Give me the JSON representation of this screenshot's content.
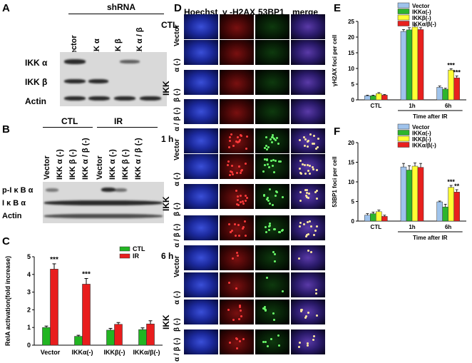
{
  "panels": {
    "A": {
      "label": "A",
      "header": "shRNA",
      "lanes": [
        "Vector",
        "IKK α",
        "IKK β",
        "IKK α / β"
      ],
      "rows": [
        "IKK α",
        "IKK β",
        "Actin"
      ]
    },
    "B": {
      "label": "B",
      "groups": [
        "CTL",
        "IR"
      ],
      "lanes": [
        "Vector",
        "IKK α (-)",
        "IKK β (-)",
        "IKK α / β (-)",
        "Vector",
        "IKK α (-)",
        "IKK β (-)",
        "IKK α / β (-)"
      ],
      "rows": [
        "p-I κ B α",
        "I κ B α",
        "Actin"
      ]
    },
    "C": {
      "label": "C"
    },
    "D": {
      "label": "D",
      "columns": [
        "Hoechst",
        "γ -H2AX",
        "53BP1",
        "merge"
      ],
      "timepoints": [
        "CTL",
        "1 h",
        "6 h"
      ],
      "row_labels": [
        "Vector",
        "α (-)",
        "β (-)",
        "α / β (-)"
      ],
      "ikk_label": "IKK"
    },
    "E": {
      "label": "E"
    },
    "F": {
      "label": "F"
    }
  },
  "colors": {
    "vector": "#9fc3ec",
    "ikka": "#2db52d",
    "ikkb": "#ffff33",
    "ikkab": "#e8201e",
    "ctl": "#22b522",
    "ir": "#e81d1d"
  },
  "chart_data": [
    {
      "id": "C",
      "type": "bar",
      "ylabel": "RelA activation(fold increase)",
      "ylim": [
        0,
        5
      ],
      "yticks": [
        "0",
        "1",
        "2",
        "3",
        "4",
        "5"
      ],
      "categories": [
        "Vector",
        "IKKα(-)",
        "IKKβ(-)",
        "IKKα/β(-)"
      ],
      "series": [
        {
          "name": "CTL",
          "values": [
            1.0,
            0.5,
            0.85,
            0.88
          ],
          "errors": [
            0.08,
            0.06,
            0.1,
            0.1
          ]
        },
        {
          "name": "IR",
          "values": [
            4.3,
            3.45,
            1.18,
            1.2
          ],
          "errors": [
            0.3,
            0.32,
            0.1,
            0.18
          ]
        }
      ],
      "annotations": [
        "***",
        "***"
      ],
      "legend_position": "top-right"
    },
    {
      "id": "E",
      "type": "bar",
      "ylabel": "γH2AX foci per cell",
      "xlabel": "Time after IR",
      "ylim": [
        0,
        25
      ],
      "yticks": [
        "0",
        "5",
        "10",
        "15",
        "20",
        "25"
      ],
      "categories": [
        "CTL",
        "1h",
        "6h"
      ],
      "series": [
        {
          "name": "Vector",
          "values": [
            1.3,
            21.8,
            4.0
          ],
          "errors": [
            0.2,
            0.6,
            0.4
          ]
        },
        {
          "name": "IKKα(-)",
          "values": [
            1.3,
            22.3,
            3.4
          ],
          "errors": [
            0.2,
            0.7,
            0.3
          ]
        },
        {
          "name": "IKKβ(-)",
          "values": [
            2.0,
            23.2,
            9.5
          ],
          "errors": [
            0.3,
            0.6,
            0.4
          ]
        },
        {
          "name": "IKKα/β(-)",
          "values": [
            1.5,
            22.4,
            7.0
          ],
          "errors": [
            0.2,
            0.6,
            0.6
          ]
        }
      ],
      "annotations": [
        "***",
        "***"
      ],
      "legend_position": "top-right"
    },
    {
      "id": "F",
      "type": "bar",
      "ylabel": "53BP1 foci per cell",
      "xlabel": "Time after IR",
      "ylim": [
        0,
        20
      ],
      "yticks": [
        "0",
        "5",
        "10",
        "15",
        "20"
      ],
      "categories": [
        "CTL",
        "1h",
        "6h"
      ],
      "series": [
        {
          "name": "Vector",
          "values": [
            1.5,
            13.8,
            4.9
          ],
          "errors": [
            0.4,
            0.9,
            0.2
          ]
        },
        {
          "name": "IKKα(-)",
          "values": [
            1.9,
            13.0,
            3.6
          ],
          "errors": [
            0.4,
            1.1,
            0.7
          ]
        },
        {
          "name": "IKKβ(-)",
          "values": [
            2.4,
            14.0,
            8.6
          ],
          "errors": [
            0.4,
            0.8,
            0.5
          ]
        },
        {
          "name": "IKKα/β(-)",
          "values": [
            1.2,
            13.7,
            7.4
          ],
          "errors": [
            0.3,
            1.0,
            0.6
          ]
        }
      ],
      "annotations": [
        "***",
        "**"
      ],
      "legend_position": "top-right"
    }
  ]
}
